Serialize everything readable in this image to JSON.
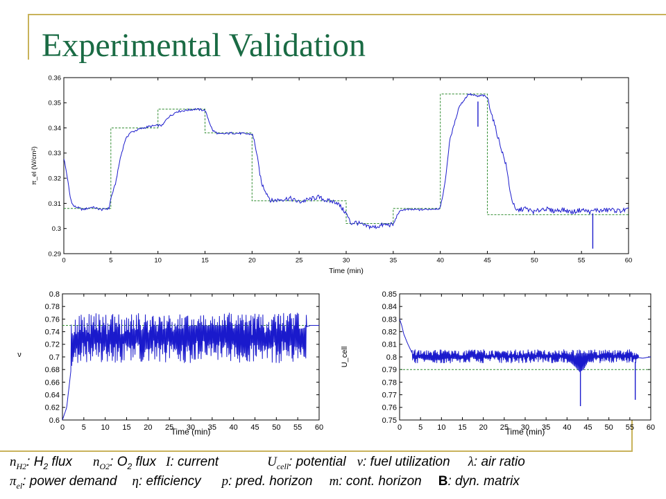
{
  "slide": {
    "title": "Experimental Validation",
    "accent_color": "#1a6b44",
    "frame_color": "#c8b25a"
  },
  "legend_lines": [
    [
      {
        "sym": "n",
        "sub": "H2",
        "text": ": H",
        "sub2": "2",
        "text2": " flux"
      },
      {
        "sym": "n",
        "sub": "O2",
        "text": ": O",
        "sub2": "2",
        "text2": " flux"
      },
      {
        "sym": "I",
        "sub": "",
        "text": ": current",
        "sub2": "",
        "text2": ""
      },
      {
        "sym": "U",
        "sub": "cell",
        "text": ": potential",
        "sub2": "",
        "text2": ""
      },
      {
        "sym": "ν",
        "sub": "",
        "text": ": fuel utilization",
        "sub2": "",
        "text2": ""
      },
      {
        "sym": "λ",
        "sub": "",
        "text": ": air ratio",
        "sub2": "",
        "text2": ""
      }
    ],
    [
      {
        "sym": "π",
        "sub": "el",
        "text": ": power demand",
        "sub2": "",
        "text2": ""
      },
      {
        "sym": "η",
        "sub": "",
        "text": ": efficiency",
        "sub2": "",
        "text2": ""
      },
      {
        "sym": "p",
        "sub": "",
        "text": ": pred. horizon",
        "sub2": "",
        "text2": ""
      },
      {
        "sym": "m",
        "sub": "",
        "text": ": cont. horizon",
        "sub2": "",
        "text2": ""
      },
      {
        "sym": "B",
        "sub": "",
        "text": ": dyn. matrix",
        "sub2": "",
        "text2": "",
        "bold": true
      }
    ]
  ],
  "chart_data": [
    {
      "type": "line",
      "xlabel": "Time (min)",
      "ylabel": "π_el (W/cm²)",
      "xlim": [
        0,
        60
      ],
      "ylim": [
        0.29,
        0.36
      ],
      "xticks": [
        0,
        5,
        10,
        15,
        20,
        25,
        30,
        35,
        40,
        45,
        50,
        55,
        60
      ],
      "yticks": [
        0.29,
        0.3,
        0.31,
        0.32,
        0.33,
        0.34,
        0.35,
        0.36
      ],
      "ytick_labels": [
        "0.29",
        "0.3",
        "0.31",
        "0.32",
        "0.33",
        "0.34",
        "0.35",
        "0.36"
      ],
      "grid": false,
      "series": [
        {
          "style": "dashed",
          "color": "#2e8b2e",
          "step": true,
          "x": [
            0,
            5,
            5,
            10,
            10,
            15,
            15,
            20,
            20,
            30,
            30,
            35,
            35,
            40,
            40,
            45,
            45,
            60
          ],
          "y": [
            0.308,
            0.308,
            0.34,
            0.34,
            0.3475,
            0.3475,
            0.338,
            0.338,
            0.311,
            0.311,
            0.302,
            0.302,
            0.308,
            0.308,
            0.3535,
            0.3535,
            0.3055,
            0.3055
          ]
        },
        {
          "style": "solid",
          "color": "#1a1acc",
          "x": [
            0,
            0.3,
            0.7,
            1,
            2,
            3,
            4,
            4.8,
            5,
            5.5,
            6,
            6.5,
            7,
            8,
            9,
            10,
            10.5,
            11,
            12,
            13,
            14,
            15,
            15.3,
            15.8,
            16.5,
            18,
            20,
            20.3,
            21,
            22,
            23,
            24,
            25,
            26,
            27,
            28,
            29,
            30,
            30.5,
            31,
            32,
            33,
            34,
            35,
            35.5,
            36,
            38,
            40,
            40.5,
            41,
            42,
            43,
            44,
            44.5,
            45,
            45.5,
            46,
            47,
            47.5,
            48,
            49,
            50,
            51,
            52,
            53,
            54,
            55,
            56,
            56.5,
            57,
            58,
            59,
            60
          ],
          "y": [
            0.328,
            0.322,
            0.312,
            0.309,
            0.3075,
            0.3085,
            0.3075,
            0.308,
            0.312,
            0.318,
            0.328,
            0.335,
            0.338,
            0.3395,
            0.3405,
            0.341,
            0.341,
            0.344,
            0.3465,
            0.347,
            0.3475,
            0.347,
            0.344,
            0.339,
            0.3375,
            0.338,
            0.3375,
            0.334,
            0.318,
            0.311,
            0.3115,
            0.312,
            0.3105,
            0.3115,
            0.3125,
            0.311,
            0.3105,
            0.306,
            0.302,
            0.3025,
            0.301,
            0.3005,
            0.3015,
            0.3015,
            0.306,
            0.3075,
            0.3075,
            0.308,
            0.318,
            0.335,
            0.3485,
            0.3535,
            0.3525,
            0.353,
            0.352,
            0.345,
            0.338,
            0.325,
            0.313,
            0.307,
            0.308,
            0.3065,
            0.308,
            0.307,
            0.3075,
            0.3065,
            0.3075,
            0.3065,
            0.3075,
            0.307,
            0.3075,
            0.307,
            0.3075
          ]
        }
      ],
      "spikes": [
        {
          "x": 44,
          "y_from": 0.3505,
          "y_to": 0.3405
        },
        {
          "x": 56.2,
          "y_from": 0.306,
          "y_to": 0.292
        }
      ]
    },
    {
      "type": "line",
      "xlabel": "Time (min)",
      "ylabel": "ν",
      "xlim": [
        0,
        60
      ],
      "ylim": [
        0.6,
        0.8
      ],
      "xticks": [
        0,
        5,
        10,
        15,
        20,
        25,
        30,
        35,
        40,
        45,
        50,
        55,
        60
      ],
      "yticks": [
        0.6,
        0.62,
        0.64,
        0.66,
        0.68,
        0.7,
        0.72,
        0.74,
        0.76,
        0.78,
        0.8
      ],
      "ytick_labels": [
        "0.6",
        "0.62",
        "0.64",
        "0.66",
        "0.68",
        "0.7",
        "0.72",
        "0.74",
        "0.76",
        "0.78",
        "0.8"
      ],
      "grid": false,
      "series": [
        {
          "style": "dashed",
          "color": "#2e8b2e",
          "x": [
            0,
            60
          ],
          "y": [
            0.75,
            0.75
          ]
        },
        {
          "style": "solid",
          "color": "#1a1acc",
          "x": [
            0,
            1,
            2,
            3,
            4,
            5,
            6,
            8,
            10,
            12,
            14,
            16,
            18,
            20,
            22,
            24,
            26,
            28,
            30,
            32,
            34,
            36,
            38,
            40,
            41,
            42,
            43,
            44,
            45,
            46,
            48,
            50,
            52,
            54,
            56,
            58,
            60
          ],
          "y": [
            0.6,
            0.62,
            0.68,
            0.71,
            0.72,
            0.73,
            0.735,
            0.73,
            0.735,
            0.74,
            0.735,
            0.74,
            0.745,
            0.735,
            0.74,
            0.745,
            0.74,
            0.745,
            0.75,
            0.75,
            0.75,
            0.75,
            0.75,
            0.745,
            0.72,
            0.7,
            0.71,
            0.73,
            0.74,
            0.735,
            0.74,
            0.745,
            0.74,
            0.745,
            0.745,
            0.75,
            0.75
          ]
        }
      ],
      "oscillation": {
        "from_x": 2,
        "to_x": 57,
        "low": 0.69,
        "high": 0.77
      }
    },
    {
      "type": "line",
      "xlabel": "Time (min)",
      "ylabel": "U_cell",
      "xlim": [
        0,
        60
      ],
      "ylim": [
        0.75,
        0.85
      ],
      "xticks": [
        0,
        5,
        10,
        15,
        20,
        25,
        30,
        35,
        40,
        45,
        50,
        55,
        60
      ],
      "yticks": [
        0.75,
        0.76,
        0.77,
        0.78,
        0.79,
        0.8,
        0.81,
        0.82,
        0.83,
        0.84,
        0.85
      ],
      "ytick_labels": [
        "0.75",
        "0.76",
        "0.77",
        "0.78",
        "0.79",
        "0.8",
        "0.81",
        "0.82",
        "0.83",
        "0.84",
        "0.85"
      ],
      "grid": false,
      "series": [
        {
          "style": "dashed",
          "color": "#2e8b2e",
          "x": [
            0,
            60
          ],
          "y": [
            0.79,
            0.79
          ]
        },
        {
          "style": "solid",
          "color": "#1a1acc",
          "x": [
            0,
            0.5,
            1,
            2,
            3,
            4,
            5,
            6,
            8,
            10,
            12,
            14,
            16,
            18,
            20,
            22,
            24,
            26,
            28,
            30,
            32,
            34,
            36,
            38,
            40,
            41,
            42,
            43,
            44,
            45,
            46,
            48,
            50,
            52,
            54,
            56,
            58,
            60
          ],
          "y": [
            0.83,
            0.825,
            0.818,
            0.81,
            0.803,
            0.8,
            0.799,
            0.798,
            0.797,
            0.798,
            0.799,
            0.798,
            0.799,
            0.8,
            0.8,
            0.801,
            0.801,
            0.801,
            0.8,
            0.8,
            0.8,
            0.8,
            0.8,
            0.8,
            0.798,
            0.795,
            0.792,
            0.788,
            0.79,
            0.796,
            0.799,
            0.8,
            0.8,
            0.8,
            0.8,
            0.8,
            0.799,
            0.8
          ]
        }
      ],
      "oscillation": {
        "from_x": 3,
        "to_x": 57,
        "low": 0.795,
        "high": 0.806
      },
      "spikes": [
        {
          "x": 43.2,
          "y_from": 0.796,
          "y_to": 0.761
        },
        {
          "x": 56.3,
          "y_from": 0.796,
          "y_to": 0.766
        }
      ]
    }
  ]
}
